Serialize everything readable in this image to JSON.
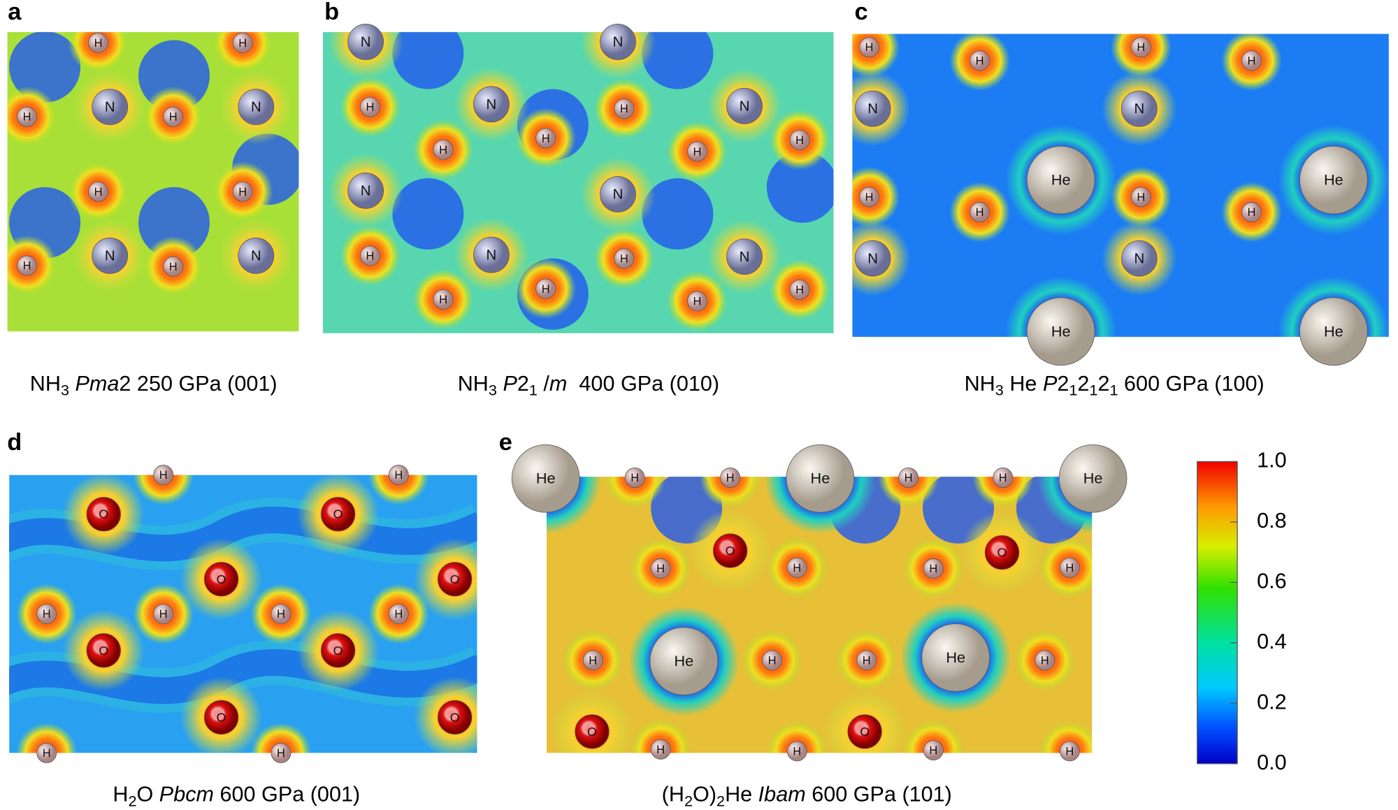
{
  "panels": [
    {
      "letter": "a",
      "caption": [
        {
          "text": "NH"
        },
        {
          "text": "3",
          "sub": true
        },
        {
          "text": " Pma",
          "italic": true
        },
        {
          "text": "2 250 GPa (001)"
        }
      ],
      "atoms": [
        "H",
        "H",
        "N",
        "N",
        "H",
        "H",
        "H",
        "H",
        "N",
        "N",
        "H",
        "H"
      ]
    },
    {
      "letter": "b",
      "caption": [
        {
          "text": "NH"
        },
        {
          "text": "3",
          "sub": true
        },
        {
          "text": " P",
          "italic": true
        },
        {
          "text": "2"
        },
        {
          "text": "1",
          "sub": true
        },
        {
          "text": " /"
        },
        {
          "text": "m",
          "italic": true
        },
        {
          "text": "  400 GPa (010)"
        }
      ],
      "atoms": [
        "N",
        "N",
        "H",
        "H",
        "N",
        "N",
        "H",
        "H",
        "H",
        "H",
        "N",
        "N",
        "H",
        "H",
        "N",
        "N",
        "H",
        "H",
        "H",
        "H"
      ]
    },
    {
      "letter": "c",
      "caption": [
        {
          "text": "NH"
        },
        {
          "text": "3",
          "sub": true
        },
        {
          "text": " He "
        },
        {
          "text": "P",
          "italic": true
        },
        {
          "text": "2"
        },
        {
          "text": "1",
          "sub": true
        },
        {
          "text": "2"
        },
        {
          "text": "1",
          "sub": true
        },
        {
          "text": "2"
        },
        {
          "text": "1",
          "sub": true
        },
        {
          "text": " 600 GPa (100)"
        }
      ],
      "atoms": [
        "H",
        "H",
        "H",
        "H",
        "N",
        "N",
        "He",
        "He",
        "H",
        "H",
        "H",
        "H",
        "N",
        "N",
        "He",
        "He"
      ]
    },
    {
      "letter": "d",
      "caption": [
        {
          "text": "H"
        },
        {
          "text": "2",
          "sub": true
        },
        {
          "text": "O "
        },
        {
          "text": "Pbcm",
          "italic": true
        },
        {
          "text": " 600 GPa (001)"
        }
      ],
      "atoms": [
        "H",
        "H",
        "O",
        "O",
        "O",
        "O",
        "H",
        "H",
        "H",
        "H",
        "O",
        "O",
        "O",
        "O",
        "H",
        "H"
      ]
    },
    {
      "letter": "e",
      "caption": [
        {
          "text": "(H"
        },
        {
          "text": "2",
          "sub": true
        },
        {
          "text": "O)"
        },
        {
          "text": "2",
          "sub": true
        },
        {
          "text": "He "
        },
        {
          "text": "Ibam",
          "italic": true
        },
        {
          "text": " 600 GPa (101)"
        }
      ],
      "atoms": [
        "He",
        "H",
        "H",
        "He",
        "H",
        "H",
        "He",
        "O",
        "O",
        "H",
        "H",
        "H",
        "H",
        "H",
        "He",
        "H",
        "H",
        "He",
        "H",
        "O",
        "O",
        "H",
        "H",
        "H",
        "H"
      ]
    }
  ],
  "colorbar": {
    "lim": [
      0,
      1
    ],
    "ticks": [
      {
        "value": 0,
        "label": "0.0"
      },
      {
        "value": 0.2,
        "label": "0.2"
      },
      {
        "value": 0.4,
        "label": "0.4"
      },
      {
        "value": 0.6,
        "label": "0.6"
      },
      {
        "value": 0.8,
        "label": "0.8"
      },
      {
        "value": 1,
        "label": "1.0"
      }
    ]
  }
}
